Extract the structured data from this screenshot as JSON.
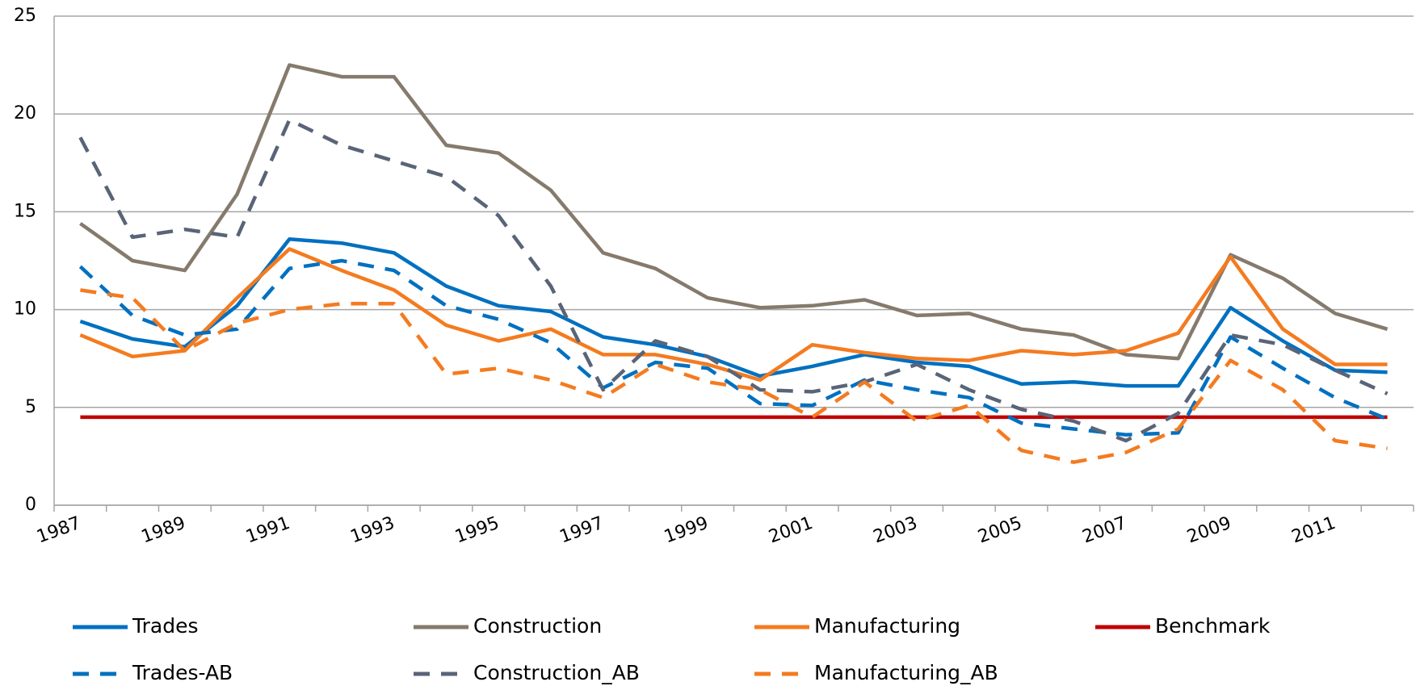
{
  "chart_data": {
    "type": "line",
    "categories": [
      "1987",
      null,
      "1989",
      null,
      "1991",
      null,
      "1993",
      null,
      "1995",
      null,
      "1997",
      null,
      "1999",
      null,
      "2001",
      null,
      "2003",
      null,
      "2005",
      null,
      "2007",
      null,
      "2009",
      null,
      "2011",
      null
    ],
    "ylim": [
      0,
      25
    ],
    "yticks": [
      0,
      5,
      10,
      15,
      20,
      25
    ],
    "grid": true,
    "series": [
      {
        "name": "Trades",
        "color": "#0070c0",
        "dashed": false,
        "values": [
          9.4,
          8.5,
          8.1,
          10.2,
          13.6,
          13.4,
          12.9,
          11.2,
          10.2,
          9.9,
          8.6,
          8.2,
          7.6,
          6.6,
          7.1,
          7.7,
          7.3,
          7.1,
          6.2,
          6.3,
          6.1,
          6.1,
          10.1,
          8.4,
          6.9,
          6.8
        ]
      },
      {
        "name": "Construction",
        "color": "#857a6c",
        "dashed": false,
        "values": [
          14.4,
          12.5,
          12.0,
          15.9,
          22.5,
          21.9,
          21.9,
          18.4,
          18.0,
          16.1,
          12.9,
          12.1,
          10.6,
          10.1,
          10.2,
          10.5,
          9.7,
          9.8,
          9.0,
          8.7,
          7.7,
          7.5,
          12.8,
          11.6,
          9.8,
          9.0
        ]
      },
      {
        "name": "Manufacturing",
        "color": "#f47b20",
        "dashed": false,
        "values": [
          8.7,
          7.6,
          7.9,
          10.6,
          13.1,
          12.0,
          11.0,
          9.2,
          8.4,
          9.0,
          7.7,
          7.7,
          7.2,
          6.4,
          8.2,
          7.8,
          7.5,
          7.4,
          7.9,
          7.7,
          7.9,
          8.8,
          12.7,
          9.0,
          7.2,
          7.2
        ]
      },
      {
        "name": "Benchmark",
        "color": "#c00000",
        "dashed": false,
        "values": [
          4.5,
          4.5,
          4.5,
          4.5,
          4.5,
          4.5,
          4.5,
          4.5,
          4.5,
          4.5,
          4.5,
          4.5,
          4.5,
          4.5,
          4.5,
          4.5,
          4.5,
          4.5,
          4.5,
          4.5,
          4.5,
          4.5,
          4.5,
          4.5,
          4.5,
          4.5
        ]
      },
      {
        "name": "Trades-AB",
        "color": "#0070c0",
        "dashed": true,
        "values": [
          12.2,
          9.7,
          8.7,
          9.0,
          12.1,
          12.5,
          12.0,
          10.2,
          9.5,
          8.3,
          6.0,
          7.3,
          7.0,
          5.2,
          5.1,
          6.4,
          5.9,
          5.5,
          4.2,
          3.9,
          3.6,
          3.7,
          8.6,
          7.0,
          5.5,
          4.4
        ]
      },
      {
        "name": "Construction_AB",
        "color": "#5a6478",
        "dashed": true,
        "values": [
          18.8,
          13.7,
          14.1,
          13.7,
          19.7,
          18.4,
          17.6,
          16.8,
          14.8,
          11.2,
          5.9,
          8.4,
          7.6,
          5.9,
          5.8,
          6.3,
          7.2,
          5.9,
          4.9,
          4.3,
          3.3,
          4.7,
          8.7,
          8.2,
          6.9,
          5.7
        ]
      },
      {
        "name": "Manufacturing_AB",
        "color": "#f47b20",
        "dashed": true,
        "values": [
          11.0,
          10.6,
          7.9,
          9.3,
          10.0,
          10.3,
          10.3,
          6.7,
          7.0,
          6.4,
          5.5,
          7.2,
          6.3,
          5.9,
          4.5,
          6.3,
          4.3,
          5.1,
          2.8,
          2.2,
          2.7,
          3.9,
          7.4,
          5.9,
          3.3,
          2.9
        ]
      }
    ]
  }
}
